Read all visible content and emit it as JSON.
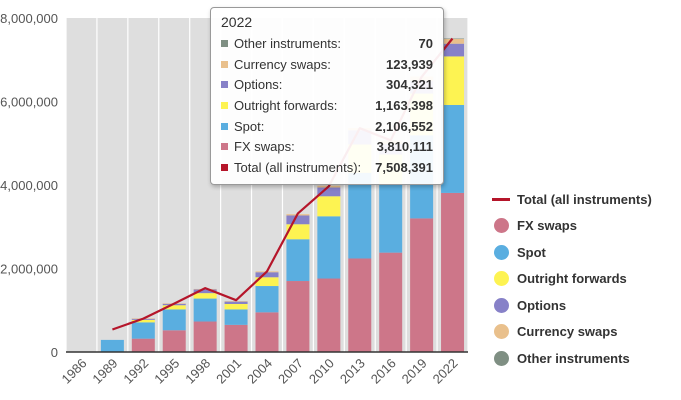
{
  "chart_data": {
    "type": "bar",
    "stacked": true,
    "categories": [
      "1986",
      "1989",
      "1992",
      "1995",
      "1998",
      "2001",
      "2004",
      "2007",
      "2010",
      "2013",
      "2016",
      "2019",
      "2022"
    ],
    "y_ticks": [
      "0",
      "2,000,000",
      "4,000,000",
      "6,000,000",
      "8,000,000"
    ],
    "ylim": [
      0,
      8000000
    ],
    "grid": "vertical-bands",
    "series": [
      {
        "name": "FX swaps",
        "color": "#cd7689",
        "values": [
          0,
          0,
          320000,
          520000,
          730000,
          650000,
          950000,
          1700000,
          1760000,
          2240000,
          2380000,
          3200000,
          3810111
        ]
      },
      {
        "name": "Spot",
        "color": "#5aaee0",
        "values": [
          0,
          290000,
          390000,
          500000,
          550000,
          370000,
          630000,
          1000000,
          1490000,
          2050000,
          1650000,
          1990000,
          2106552
        ]
      },
      {
        "name": "Outright forwards",
        "color": "#fdf352",
        "values": [
          0,
          0,
          60000,
          100000,
          130000,
          130000,
          210000,
          360000,
          480000,
          680000,
          700000,
          1000000,
          1163398
        ]
      },
      {
        "name": "Options",
        "color": "#8781c8",
        "values": [
          0,
          0,
          30000,
          40000,
          90000,
          60000,
          120000,
          210000,
          210000,
          340000,
          250000,
          300000,
          304321
        ]
      },
      {
        "name": "Currency swaps",
        "color": "#e9c08c",
        "values": [
          0,
          0,
          5000,
          4000,
          10000,
          7000,
          21000,
          31000,
          43000,
          54000,
          82000,
          108000,
          123939
        ]
      },
      {
        "name": "Other instruments",
        "color": "#7f8f83",
        "values": [
          0,
          0,
          0,
          0,
          0,
          0,
          0,
          0,
          0,
          0,
          0,
          0,
          70
        ]
      }
    ],
    "line_series": {
      "name": "Total (all instruments)",
      "color": "#b5152a",
      "values": [
        null,
        540000,
        800000,
        1160000,
        1530000,
        1240000,
        1930000,
        3320000,
        3970000,
        5360000,
        5070000,
        6590000,
        7508391
      ]
    },
    "legend": {
      "position": "right",
      "items": [
        {
          "label": "Total (all instruments)",
          "color": "#b5152a",
          "shape": "line"
        },
        {
          "label": "FX swaps",
          "color": "#cd7689",
          "shape": "dot"
        },
        {
          "label": "Spot",
          "color": "#5aaee0",
          "shape": "dot"
        },
        {
          "label": "Outright forwards",
          "color": "#fdf352",
          "shape": "dot"
        },
        {
          "label": "Options",
          "color": "#8781c8",
          "shape": "dot"
        },
        {
          "label": "Currency swaps",
          "color": "#e9c08c",
          "shape": "dot"
        },
        {
          "label": "Other instruments",
          "color": "#7f8f83",
          "shape": "dot"
        }
      ]
    },
    "tooltip": {
      "title": "2022",
      "rows": [
        {
          "label": "Other instruments:",
          "value": "70",
          "color": "#7f8f83"
        },
        {
          "label": "Currency swaps:",
          "value": "123,939",
          "color": "#e9c08c"
        },
        {
          "label": "Options:",
          "value": "304,321",
          "color": "#8781c8"
        },
        {
          "label": "Outright forwards:",
          "value": "1,163,398",
          "color": "#fdf352"
        },
        {
          "label": "Spot:",
          "value": "2,106,552",
          "color": "#5aaee0"
        },
        {
          "label": "FX swaps:",
          "value": "3,810,111",
          "color": "#cd7689"
        },
        {
          "label": "Total (all instruments):",
          "value": "7,508,391",
          "color": "#b5152a"
        }
      ]
    }
  }
}
